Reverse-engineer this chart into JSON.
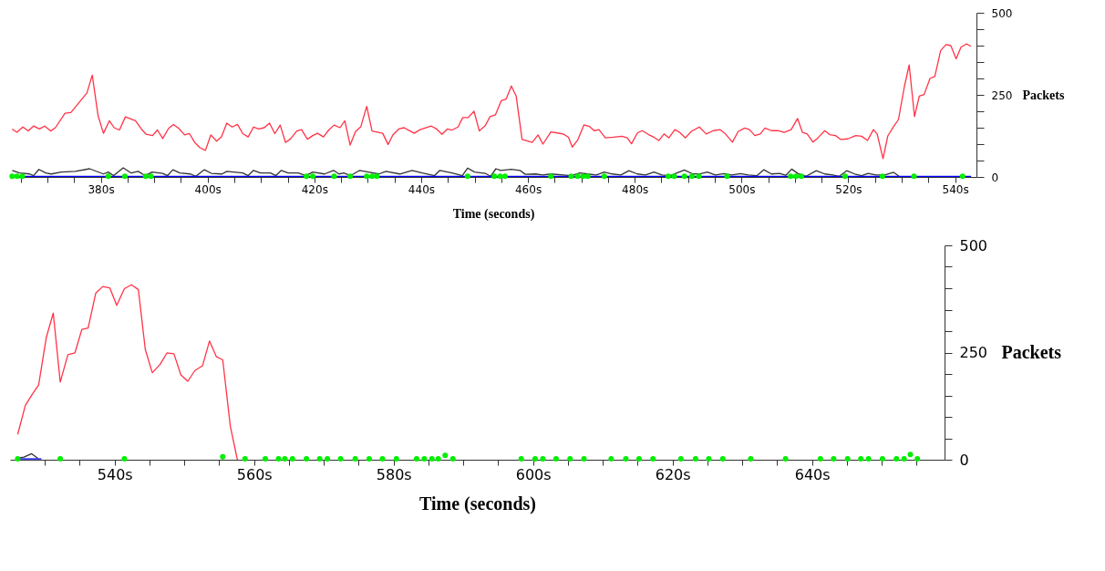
{
  "chart_data": [
    {
      "type": "line",
      "xlabel": "Time (seconds)",
      "ylabel": "Packets",
      "xlim": [
        363,
        544
      ],
      "ylim": [
        0,
        500
      ],
      "grid": false,
      "xticks": [
        {
          "value": 365,
          "label": null
        },
        {
          "value": 370,
          "label": null
        },
        {
          "value": 375,
          "label": null
        },
        {
          "value": 380,
          "label": "380s"
        },
        {
          "value": 385,
          "label": null
        },
        {
          "value": 390,
          "label": null
        },
        {
          "value": 395,
          "label": null
        },
        {
          "value": 400,
          "label": "400s"
        },
        {
          "value": 405,
          "label": null
        },
        {
          "value": 410,
          "label": null
        },
        {
          "value": 415,
          "label": null
        },
        {
          "value": 420,
          "label": "420s"
        },
        {
          "value": 425,
          "label": null
        },
        {
          "value": 430,
          "label": null
        },
        {
          "value": 435,
          "label": null
        },
        {
          "value": 440,
          "label": "440s"
        },
        {
          "value": 445,
          "label": null
        },
        {
          "value": 450,
          "label": null
        },
        {
          "value": 455,
          "label": null
        },
        {
          "value": 460,
          "label": "460s"
        },
        {
          "value": 465,
          "label": null
        },
        {
          "value": 470,
          "label": null
        },
        {
          "value": 475,
          "label": null
        },
        {
          "value": 480,
          "label": "480s"
        },
        {
          "value": 485,
          "label": null
        },
        {
          "value": 490,
          "label": null
        },
        {
          "value": 495,
          "label": null
        },
        {
          "value": 500,
          "label": "500s"
        },
        {
          "value": 505,
          "label": null
        },
        {
          "value": 510,
          "label": null
        },
        {
          "value": 515,
          "label": null
        },
        {
          "value": 520,
          "label": "520s"
        },
        {
          "value": 525,
          "label": null
        },
        {
          "value": 530,
          "label": null
        },
        {
          "value": 535,
          "label": null
        },
        {
          "value": 540,
          "label": "540s"
        }
      ],
      "yticks": [
        0,
        {
          "value": 50,
          "label": null
        },
        {
          "value": 100,
          "label": null
        },
        {
          "value": 150,
          "label": null
        },
        {
          "value": 200,
          "label": null
        },
        250,
        {
          "value": 300,
          "label": null
        },
        {
          "value": 350,
          "label": null
        },
        {
          "value": 400,
          "label": null
        },
        {
          "value": 450,
          "label": null
        },
        500
      ],
      "series": [
        {
          "color": "#ff3347",
          "x": [
            363.4,
            364.3,
            365.4,
            366.4,
            367.4,
            368.5,
            369.5,
            370.6,
            371.5,
            373.3,
            374.4,
            377.4,
            378.4,
            379.5,
            380.5,
            381.6,
            382.5,
            383.5,
            384.6,
            386.5,
            387.6,
            388.5,
            389.7,
            390.6,
            391.6,
            392.7,
            393.6,
            394.6,
            395.7,
            396.6,
            397.6,
            398.6,
            399.6,
            400.6,
            401.7,
            402.6,
            403.6,
            404.6,
            405.6,
            406.6,
            407.6,
            408.6,
            409.6,
            410.6,
            411.6,
            412.6,
            413.6,
            414.6,
            415.6,
            416.7,
            417.6,
            418.7,
            419.7,
            420.6,
            421.7,
            422.7,
            423.7,
            424.8,
            425.7,
            426.7,
            427.7,
            428.7,
            429.8,
            430.8,
            432.8,
            433.8,
            434.7,
            435.8,
            436.8,
            437.7,
            438.7,
            439.8,
            441.9,
            442.9,
            443.9,
            444.9,
            445.8,
            446.9,
            447.8,
            448.8,
            449.9,
            450.9,
            452.0,
            452.9,
            453.9,
            455.0,
            455.9,
            456.9,
            457.8,
            458.9,
            460.8,
            461.9,
            462.8,
            464.3,
            465.5,
            466.6,
            467.6,
            468.3,
            469.3,
            470.5,
            471.5,
            472.4,
            473.3,
            474.5,
            476.0,
            477.6,
            478.6,
            479.4,
            480.5,
            481.4,
            482.6,
            483.6,
            484.5,
            485.5,
            486.4,
            487.5,
            488.4,
            489.5,
            490.6,
            492.1,
            493.4,
            494.7,
            496.0,
            497.0,
            498.3,
            499.4,
            500.6,
            501.5,
            502.5,
            503.5,
            504.4,
            505.6,
            506.8,
            508.0,
            509.3,
            510.5,
            511.4,
            512.3,
            513.4,
            514.3,
            515.6,
            516.5,
            517.6,
            518.6,
            519.9,
            521.4,
            522.5,
            523.6,
            524.7,
            525.4,
            526.5,
            527.4,
            528.5,
            529.4,
            530.5,
            531.4,
            532.4,
            533.3,
            534.2,
            535.3,
            536.2,
            537.3,
            538.3,
            539.2,
            540.2,
            541.1,
            542.1,
            543.0
          ],
          "values": [
            146,
            136,
            152,
            140,
            155,
            146,
            155,
            140,
            150,
            194,
            196,
            256,
            310,
            186,
            133,
            171,
            150,
            143,
            183,
            171,
            146,
            130,
            126,
            143,
            117,
            148,
            160,
            148,
            128,
            132,
            105,
            89,
            81,
            128,
            109,
            122,
            164,
            152,
            160,
            132,
            122,
            152,
            146,
            150,
            164,
            132,
            158,
            105,
            117,
            140,
            144,
            115,
            126,
            133,
            122,
            143,
            158,
            150,
            171,
            97,
            138,
            153,
            215,
            140,
            133,
            99,
            128,
            146,
            150,
            142,
            133,
            144,
            155,
            146,
            130,
            146,
            143,
            152,
            181,
            181,
            200,
            140,
            156,
            184,
            189,
            232,
            237,
            277,
            246,
            114,
            105,
            128,
            100,
            137,
            134,
            131,
            121,
            91,
            112,
            159,
            154,
            141,
            144,
            119,
            121,
            124,
            119,
            101,
            134,
            141,
            129,
            121,
            111,
            131,
            119,
            144,
            136,
            119,
            139,
            152,
            131,
            141,
            144,
            131,
            106,
            139,
            149,
            144,
            126,
            131,
            149,
            141,
            141,
            136,
            144,
            178,
            136,
            131,
            106,
            119,
            141,
            129,
            126,
            114,
            116,
            126,
            124,
            111,
            144,
            131,
            56,
            125,
            154,
            175,
            275,
            341,
            184,
            246,
            251,
            300,
            306,
            385,
            403,
            400,
            360,
            395,
            405,
            398
          ]
        },
        {
          "color": "#333333",
          "x": [
            363.4,
            364.8,
            366.7,
            367.4,
            368.4,
            369.7,
            370.7,
            372.6,
            375.2,
            377.9,
            380.5,
            381.4,
            382.4,
            384.2,
            385.7,
            387.0,
            388.3,
            389.6,
            391.6,
            392.5,
            393.5,
            394.8,
            396.8,
            397.8,
            399.4,
            400.7,
            402.7,
            403.6,
            406.6,
            407.6,
            408.6,
            409.9,
            411.8,
            412.8,
            413.8,
            415.1,
            417.0,
            418.4,
            419.7,
            421.9,
            423.6,
            424.6,
            425.5,
            426.8,
            428.5,
            430.1,
            432.1,
            433.4,
            436.0,
            438.3,
            440.2,
            442.5,
            443.5,
            445.8,
            447.7,
            448.7,
            450.0,
            452.0,
            453.0,
            454.0,
            454.9,
            456.9,
            458.5,
            459.5,
            461.5,
            462.7,
            464.3,
            468.1,
            469.7,
            471.2,
            472.8,
            474.3,
            475.8,
            477.4,
            478.9,
            480.5,
            482.0,
            483.6,
            485.1,
            486.6,
            489.3,
            490.9,
            492.4,
            493.6,
            495.1,
            496.7,
            498.2,
            499.8,
            501.3,
            502.9,
            504.2,
            505.6,
            507.1,
            508.3,
            509.4,
            510.6,
            512.1,
            514.0,
            515.6,
            517.1,
            518.3,
            519.7,
            521.2,
            522.5,
            523.7,
            525.2,
            526.8,
            528.5,
            529.5
          ],
          "values": [
            20,
            12,
            9,
            4,
            23,
            12,
            9,
            15,
            17,
            25,
            9,
            15,
            4,
            28,
            12,
            17,
            4,
            15,
            11,
            4,
            22,
            12,
            9,
            2,
            22,
            11,
            9,
            17,
            12,
            4,
            20,
            12,
            12,
            4,
            20,
            12,
            12,
            4,
            15,
            9,
            20,
            9,
            12,
            4,
            20,
            15,
            9,
            17,
            9,
            20,
            12,
            4,
            20,
            12,
            4,
            27,
            15,
            11,
            2,
            25,
            20,
            23,
            20,
            8,
            9,
            6,
            9,
            4,
            12,
            9,
            6,
            15,
            9,
            6,
            19,
            9,
            6,
            15,
            6,
            4,
            21,
            9,
            10,
            15,
            6,
            10,
            6,
            10,
            6,
            4,
            22,
            9,
            11,
            5,
            24,
            10,
            2,
            19,
            9,
            6,
            2,
            19,
            9,
            4,
            11,
            6,
            6,
            14,
            2
          ]
        },
        {
          "color": "#0000ff",
          "x": [
            363.4,
            543.0
          ],
          "values": [
            2,
            2
          ]
        },
        {
          "type": "scatter",
          "marker": "circle",
          "color": "#00ee00",
          "x": [
            363.4,
            364.3,
            365.3,
            381.4,
            384.5,
            388.4,
            389.4,
            418.5,
            419.7,
            423.7,
            426.7,
            429.8,
            430.8,
            431.7,
            448.7,
            453.7,
            454.8,
            455.7,
            464.3,
            468.1,
            469.3,
            470.3,
            471.2,
            474.3,
            486.3,
            487.4,
            489.3,
            490.7,
            492.0,
            497.3,
            509.2,
            510.2,
            511.2,
            519.4,
            526.4,
            532.3,
            541.4
          ],
          "values": [
            2,
            2,
            2,
            2,
            2,
            2,
            2,
            2,
            2,
            2,
            2,
            2,
            2,
            2,
            2,
            2,
            2,
            2,
            2,
            2,
            2,
            2,
            2,
            2,
            2,
            2,
            2,
            2,
            2,
            2,
            2,
            2,
            2,
            2,
            2,
            2,
            2
          ]
        }
      ]
    },
    {
      "type": "line",
      "xlabel": "Time (seconds)",
      "ylabel": "Packets",
      "xlim": [
        525,
        659
      ],
      "ylim": [
        0,
        500
      ],
      "grid": false,
      "xticks": [
        {
          "value": 530,
          "label": null
        },
        {
          "value": 535,
          "label": null
        },
        {
          "value": 540,
          "label": "540s"
        },
        {
          "value": 545,
          "label": null
        },
        {
          "value": 550,
          "label": null
        },
        {
          "value": 555,
          "label": null
        },
        {
          "value": 560,
          "label": "560s"
        },
        {
          "value": 565,
          "label": null
        },
        {
          "value": 570,
          "label": null
        },
        {
          "value": 575,
          "label": null
        },
        {
          "value": 580,
          "label": "580s"
        },
        {
          "value": 585,
          "label": null
        },
        {
          "value": 590,
          "label": null
        },
        {
          "value": 595,
          "label": null
        },
        {
          "value": 600,
          "label": "600s"
        },
        {
          "value": 605,
          "label": null
        },
        {
          "value": 610,
          "label": null
        },
        {
          "value": 615,
          "label": null
        },
        {
          "value": 620,
          "label": "620s"
        },
        {
          "value": 625,
          "label": null
        },
        {
          "value": 630,
          "label": null
        },
        {
          "value": 635,
          "label": null
        },
        {
          "value": 640,
          "label": "640s"
        },
        {
          "value": 645,
          "label": null
        },
        {
          "value": 650,
          "label": null
        },
        {
          "value": 655,
          "label": null
        }
      ],
      "yticks": [
        0,
        {
          "value": 50,
          "label": null
        },
        {
          "value": 100,
          "label": null
        },
        {
          "value": 150,
          "label": null
        },
        {
          "value": 200,
          "label": null
        },
        250,
        {
          "value": 300,
          "label": null
        },
        {
          "value": 350,
          "label": null
        },
        {
          "value": 400,
          "label": null
        },
        {
          "value": 450,
          "label": null
        },
        500
      ],
      "series": [
        {
          "color": "#ff3347",
          "x": [
            526.1,
            527.2,
            528.2,
            529.1,
            530.2,
            531.2,
            532.2,
            533.3,
            534.3,
            535.3,
            536.2,
            537.3,
            538.3,
            539.3,
            540.3,
            541.4,
            542.4,
            543.4,
            544.4,
            545.4,
            546.5,
            547.5,
            548.5,
            549.5,
            550.5,
            551.5,
            552.6,
            553.6,
            554.6,
            555.5,
            556.6,
            557.6
          ],
          "values": [
            59,
            127,
            153,
            174,
            285,
            342,
            181,
            245,
            249,
            304,
            307,
            389,
            404,
            401,
            360,
            399,
            408,
            397,
            257,
            203,
            222,
            249,
            247,
            198,
            183,
            208,
            219,
            277,
            240,
            233,
            77,
            0
          ]
        },
        {
          "color": "#333333",
          "x": [
            526.1,
            527.0,
            528.1,
            529.0
          ],
          "values": [
            4,
            6,
            14,
            3
          ]
        },
        {
          "color": "#0000ff",
          "x": [
            526.1,
            529.5
          ],
          "values": [
            2,
            2
          ]
        },
        {
          "type": "scatter",
          "marker": "circle",
          "color": "#00ee00",
          "x": [
            526.1,
            532.2,
            541.4,
            555.5,
            558.7,
            561.6,
            563.5,
            564.4,
            565.5,
            567.5,
            569.4,
            570.5,
            572.4,
            574.5,
            576.5,
            578.4,
            580.4,
            583.3,
            584.4,
            585.5,
            586.4,
            587.4,
            588.5,
            598.3,
            600.3,
            601.4,
            603.3,
            605.3,
            607.3,
            611.2,
            613.3,
            615.2,
            617.2,
            621.2,
            623.3,
            625.2,
            627.2,
            631.2,
            636.2,
            641.2,
            643.1,
            645.1,
            647.0,
            648.1,
            650.1,
            652.1,
            653.2,
            654.1,
            655.1
          ],
          "values": [
            2,
            2,
            2,
            7,
            2,
            2,
            2,
            2,
            2,
            2,
            2,
            2,
            2,
            2,
            2,
            2,
            2,
            2,
            2,
            2,
            2,
            10,
            2,
            2,
            2,
            2,
            2,
            2,
            2,
            2,
            2,
            2,
            2,
            2,
            2,
            2,
            2,
            2,
            2,
            2,
            2,
            2,
            2,
            2,
            2,
            2,
            2,
            12,
            2
          ]
        }
      ]
    }
  ]
}
